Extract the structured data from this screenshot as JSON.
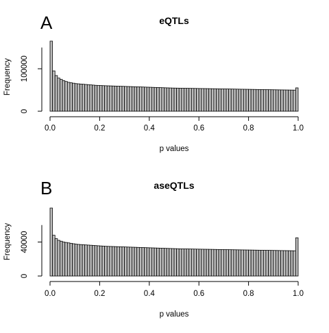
{
  "chart_data": [
    {
      "type": "bar",
      "panel_letter": "A",
      "title": "eQTLs",
      "xlabel": "p values",
      "ylabel": "Frequency",
      "xlim": [
        0,
        1
      ],
      "ylim": [
        0,
        160000
      ],
      "x_ticks": [
        "0.0",
        "0.2",
        "0.4",
        "0.6",
        "0.8",
        "1.0"
      ],
      "y_ticks": [
        "0",
        "100000"
      ],
      "bin_width": 0.01,
      "bar_color": "#bebebe",
      "values": [
        165000,
        95000,
        84000,
        78000,
        75000,
        72000,
        70000,
        68000,
        67000,
        66000,
        65000,
        64500,
        64000,
        63500,
        63000,
        62500,
        62000,
        61500,
        61000,
        60800,
        60500,
        60200,
        60000,
        59800,
        59600,
        59400,
        59200,
        59000,
        58800,
        58600,
        58400,
        58200,
        58000,
        57800,
        57600,
        57400,
        57200,
        57000,
        56800,
        56600,
        56400,
        56200,
        56000,
        55800,
        55600,
        55400,
        55200,
        55000,
        54800,
        54600,
        54500,
        54400,
        54300,
        54200,
        54100,
        54000,
        53900,
        53800,
        53700,
        53600,
        53500,
        53400,
        53300,
        53200,
        53100,
        53000,
        52900,
        52800,
        52700,
        52600,
        52500,
        52400,
        52300,
        52200,
        52100,
        52000,
        51900,
        51800,
        51700,
        51600,
        51500,
        51400,
        51300,
        51200,
        51100,
        51000,
        50900,
        50800,
        50700,
        50600,
        50500,
        50400,
        50300,
        50200,
        50100,
        50000,
        49900,
        49800,
        49700,
        55000
      ]
    },
    {
      "type": "bar",
      "panel_letter": "B",
      "title": "aseQTLs",
      "xlabel": "p values",
      "ylabel": "Frequency",
      "xlim": [
        0,
        1
      ],
      "ylim": [
        0,
        80000
      ],
      "x_ticks": [
        "0.0",
        "0.2",
        "0.4",
        "0.6",
        "0.8",
        "1.0"
      ],
      "y_ticks": [
        "0",
        "40000"
      ],
      "bin_width": 0.01,
      "bar_color": "#bebebe",
      "values": [
        80000,
        48000,
        44000,
        42000,
        41000,
        40000,
        39500,
        39000,
        38500,
        38000,
        37500,
        37200,
        37000,
        36800,
        36600,
        36400,
        36200,
        36000,
        35800,
        35600,
        35400,
        35200,
        35000,
        34900,
        34800,
        34700,
        34600,
        34500,
        34400,
        34300,
        34200,
        34100,
        34000,
        33900,
        33800,
        33700,
        33600,
        33500,
        33400,
        33300,
        33200,
        33100,
        33000,
        32900,
        32800,
        32700,
        32600,
        32500,
        32400,
        32300,
        32200,
        32100,
        32000,
        31950,
        31900,
        31850,
        31800,
        31750,
        31700,
        31650,
        31600,
        31550,
        31500,
        31450,
        31400,
        31350,
        31300,
        31250,
        31200,
        31150,
        31100,
        31050,
        31000,
        30950,
        30900,
        30850,
        30800,
        30750,
        30700,
        30650,
        30600,
        30550,
        30500,
        30450,
        30400,
        30350,
        30300,
        30250,
        30200,
        30150,
        30100,
        30050,
        30000,
        29950,
        29900,
        29850,
        29800,
        29750,
        29700,
        45000
      ]
    }
  ]
}
